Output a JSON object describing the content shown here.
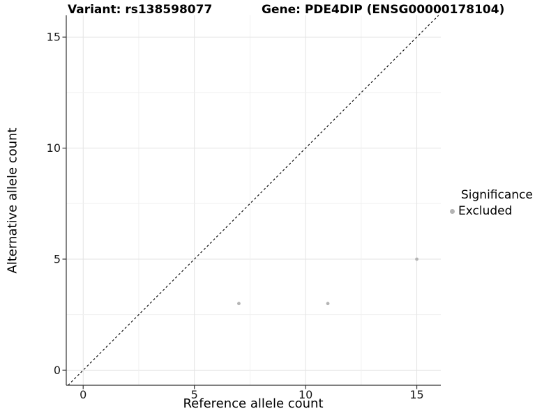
{
  "chart_data": {
    "type": "scatter",
    "titles": {
      "left": "Variant: rs138598077",
      "right": "Gene: PDE4DIP (ENSG00000178104)"
    },
    "xlabel": "Reference allele count",
    "ylabel": "Alternative allele count",
    "xlim": [
      -0.76,
      16.08
    ],
    "ylim": [
      -0.68,
      15.98
    ],
    "xticks": [
      0,
      5,
      10,
      15
    ],
    "yticks": [
      0,
      5,
      10,
      15
    ],
    "grid": {
      "shown": true,
      "minor_step": 2.5,
      "major_step": 5
    },
    "series": [
      {
        "name": "Excluded",
        "marker": "circle",
        "color": "#b4b4b4",
        "points": [
          [
            7,
            3
          ],
          [
            11,
            3
          ],
          [
            15,
            5
          ]
        ]
      }
    ],
    "reference_line": {
      "kind": "identity",
      "slope": 1,
      "intercept": 0,
      "style": "dashed",
      "color": "#111111"
    },
    "legend": {
      "title": "Significance",
      "position": "right",
      "items": [
        {
          "label": "Excluded",
          "marker": "circle",
          "color": "#b4b4b4"
        }
      ]
    },
    "colors": {
      "background": "#ffffff",
      "axis_line": "#333333",
      "tick_mark": "#333333",
      "tick_label": "#1a1a1a",
      "grid_major": "#e3e3e3",
      "grid_minor": "#f0f0f0"
    }
  }
}
